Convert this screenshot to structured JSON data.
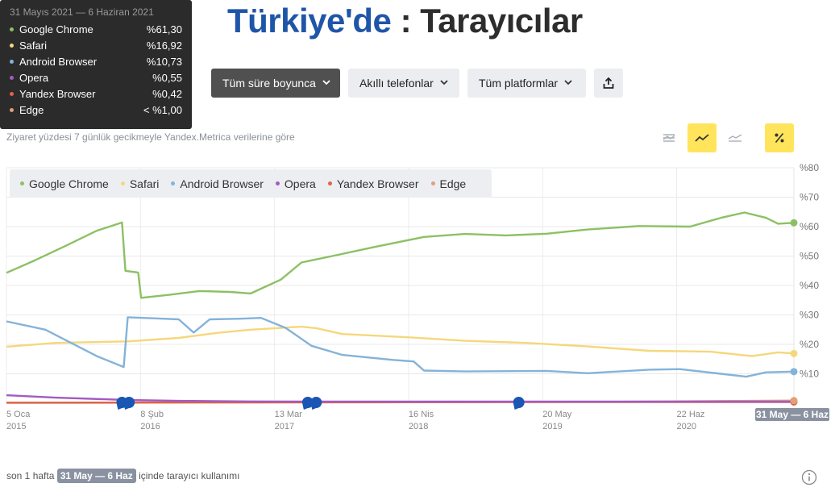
{
  "tooltip": {
    "date": "31 Mayıs 2021 — 6 Haziran 2021",
    "rows": [
      {
        "name": "Google Chrome",
        "value": "%61,30",
        "color": "#8dc064"
      },
      {
        "name": "Safari",
        "value": "%16,92",
        "color": "#f5d77c"
      },
      {
        "name": "Android Browser",
        "value": "%10,73",
        "color": "#84b3d9"
      },
      {
        "name": "Opera",
        "value": "%0,55",
        "color": "#a25cc0"
      },
      {
        "name": "Yandex Browser",
        "value": "%0,42",
        "color": "#e0624a"
      },
      {
        "name": "Edge",
        "value": "< %1,00",
        "color": "#e0a078"
      }
    ]
  },
  "title": {
    "country": "Türkiye'de",
    "colon": ":",
    "subject": "Tarayıcılar"
  },
  "controls": {
    "period": "Tüm süre boyunca",
    "device": "Akıllı telefonlar",
    "platform": "Tüm platformlar"
  },
  "subtitle": "Ziyaret yüzdesi 7 günlük gecikmeyle Yandex.Metrica verilerine göre",
  "footer": {
    "prefix": "son 1 hafta",
    "range": "31 May — 6 Haz",
    "suffix": "içinde tarayıcı kullanımı"
  },
  "chart_data": {
    "type": "line",
    "ylim": [
      0,
      80
    ],
    "xlim": [
      "2015-01-05",
      "2021-06-06"
    ],
    "y_ticks": [
      "%80",
      "%70",
      "%60",
      "%50",
      "%40",
      "%30",
      "%20",
      "%10"
    ],
    "x_ticks": [
      {
        "date": "2015-01-05",
        "label": "5 Oca",
        "year": "2015"
      },
      {
        "date": "2016-02-08",
        "label": "8 Şub",
        "year": "2016"
      },
      {
        "date": "2017-03-13",
        "label": "13 Mar",
        "year": "2017"
      },
      {
        "date": "2018-04-16",
        "label": "16 Nis",
        "year": "2018"
      },
      {
        "date": "2019-05-20",
        "label": "20 May",
        "year": "2019"
      },
      {
        "date": "2020-06-22",
        "label": "22 Haz",
        "year": "2020"
      }
    ],
    "end_label": "31 May — 6 Haz",
    "series": [
      {
        "name": "Google Chrome",
        "color": "#8dc064",
        "points": [
          [
            "2015-01-05",
            44.3
          ],
          [
            "2015-04-01",
            48.6
          ],
          [
            "2015-07-01",
            53.5
          ],
          [
            "2015-10-01",
            58.6
          ],
          [
            "2015-12-15",
            61.4
          ],
          [
            "2015-12-25",
            45
          ],
          [
            "2016-02-01",
            44.4
          ],
          [
            "2016-02-10",
            35.8
          ],
          [
            "2016-05-01",
            36.8
          ],
          [
            "2016-08-01",
            38.1
          ],
          [
            "2016-11-01",
            37.8
          ],
          [
            "2017-01-01",
            37.3
          ],
          [
            "2017-04-01",
            42
          ],
          [
            "2017-06-01",
            47.8
          ],
          [
            "2017-09-01",
            50
          ],
          [
            "2018-01-01",
            53
          ],
          [
            "2018-06-01",
            56.5
          ],
          [
            "2018-10-01",
            57.5
          ],
          [
            "2019-02-01",
            57
          ],
          [
            "2019-06-01",
            57.6
          ],
          [
            "2019-10-01",
            59
          ],
          [
            "2020-03-01",
            60.2
          ],
          [
            "2020-08-01",
            60
          ],
          [
            "2020-11-01",
            63
          ],
          [
            "2021-01-10",
            64.8
          ],
          [
            "2021-03-15",
            63
          ],
          [
            "2021-04-20",
            61
          ],
          [
            "2021-06-06",
            61.3
          ]
        ]
      },
      {
        "name": "Safari",
        "color": "#f5d77c",
        "points": [
          [
            "2015-01-05",
            19.2
          ],
          [
            "2015-06-01",
            20.5
          ],
          [
            "2016-01-01",
            21
          ],
          [
            "2016-06-01",
            22.2
          ],
          [
            "2016-10-01",
            24
          ],
          [
            "2017-01-01",
            25
          ],
          [
            "2017-06-01",
            26
          ],
          [
            "2017-07-15",
            25.5
          ],
          [
            "2017-10-01",
            23.5
          ],
          [
            "2018-04-01",
            22.5
          ],
          [
            "2018-10-01",
            21.2
          ],
          [
            "2019-04-01",
            20.5
          ],
          [
            "2019-10-01",
            19.3
          ],
          [
            "2020-04-01",
            17.8
          ],
          [
            "2020-10-01",
            17.5
          ],
          [
            "2021-02-01",
            16
          ],
          [
            "2021-04-20",
            17.3
          ],
          [
            "2021-06-06",
            16.9
          ]
        ]
      },
      {
        "name": "Android Browser",
        "color": "#84b3d9",
        "points": [
          [
            "2015-01-05",
            27.8
          ],
          [
            "2015-05-01",
            25
          ],
          [
            "2015-10-01",
            16
          ],
          [
            "2015-12-20",
            12.3
          ],
          [
            "2016-01-01",
            29.2
          ],
          [
            "2016-04-01",
            28.8
          ],
          [
            "2016-06-01",
            28.5
          ],
          [
            "2016-07-15",
            24
          ],
          [
            "2016-09-01",
            28.5
          ],
          [
            "2016-12-01",
            28.7
          ],
          [
            "2017-02-01",
            29
          ],
          [
            "2017-04-15",
            25.6
          ],
          [
            "2017-07-01",
            19.5
          ],
          [
            "2017-10-01",
            16.4
          ],
          [
            "2018-03-01",
            14.7
          ],
          [
            "2018-05-01",
            14.2
          ],
          [
            "2018-06-01",
            11.1
          ],
          [
            "2018-10-01",
            10.8
          ],
          [
            "2019-06-01",
            11
          ],
          [
            "2019-10-01",
            10.2
          ],
          [
            "2020-04-01",
            11.4
          ],
          [
            "2020-07-01",
            11.6
          ],
          [
            "2020-11-01",
            10
          ],
          [
            "2021-01-15",
            9
          ],
          [
            "2021-03-15",
            10.5
          ],
          [
            "2021-06-06",
            10.73
          ]
        ]
      },
      {
        "name": "Opera",
        "color": "#a25cc0",
        "points": [
          [
            "2015-01-05",
            2.7
          ],
          [
            "2015-06-01",
            1.9
          ],
          [
            "2016-01-01",
            1.1
          ],
          [
            "2016-06-01",
            0.8
          ],
          [
            "2017-01-01",
            0.6
          ],
          [
            "2018-01-01",
            0.55
          ],
          [
            "2021-06-06",
            0.55
          ]
        ]
      },
      {
        "name": "Yandex Browser",
        "color": "#e0624a",
        "points": [
          [
            "2015-01-05",
            0.2
          ],
          [
            "2017-01-01",
            0.3
          ],
          [
            "2019-06-01",
            0.4
          ],
          [
            "2021-06-06",
            0.42
          ]
        ]
      },
      {
        "name": "Edge",
        "color": "#e0a078",
        "points": [
          [
            "2015-01-05",
            0.1
          ],
          [
            "2018-01-01",
            0.3
          ],
          [
            "2020-01-01",
            0.5
          ],
          [
            "2021-06-06",
            0.9
          ]
        ]
      }
    ],
    "markers": [
      "2015-12-15",
      "2016-01-05",
      "2017-06-20",
      "2017-07-15",
      "2019-03-10"
    ]
  }
}
